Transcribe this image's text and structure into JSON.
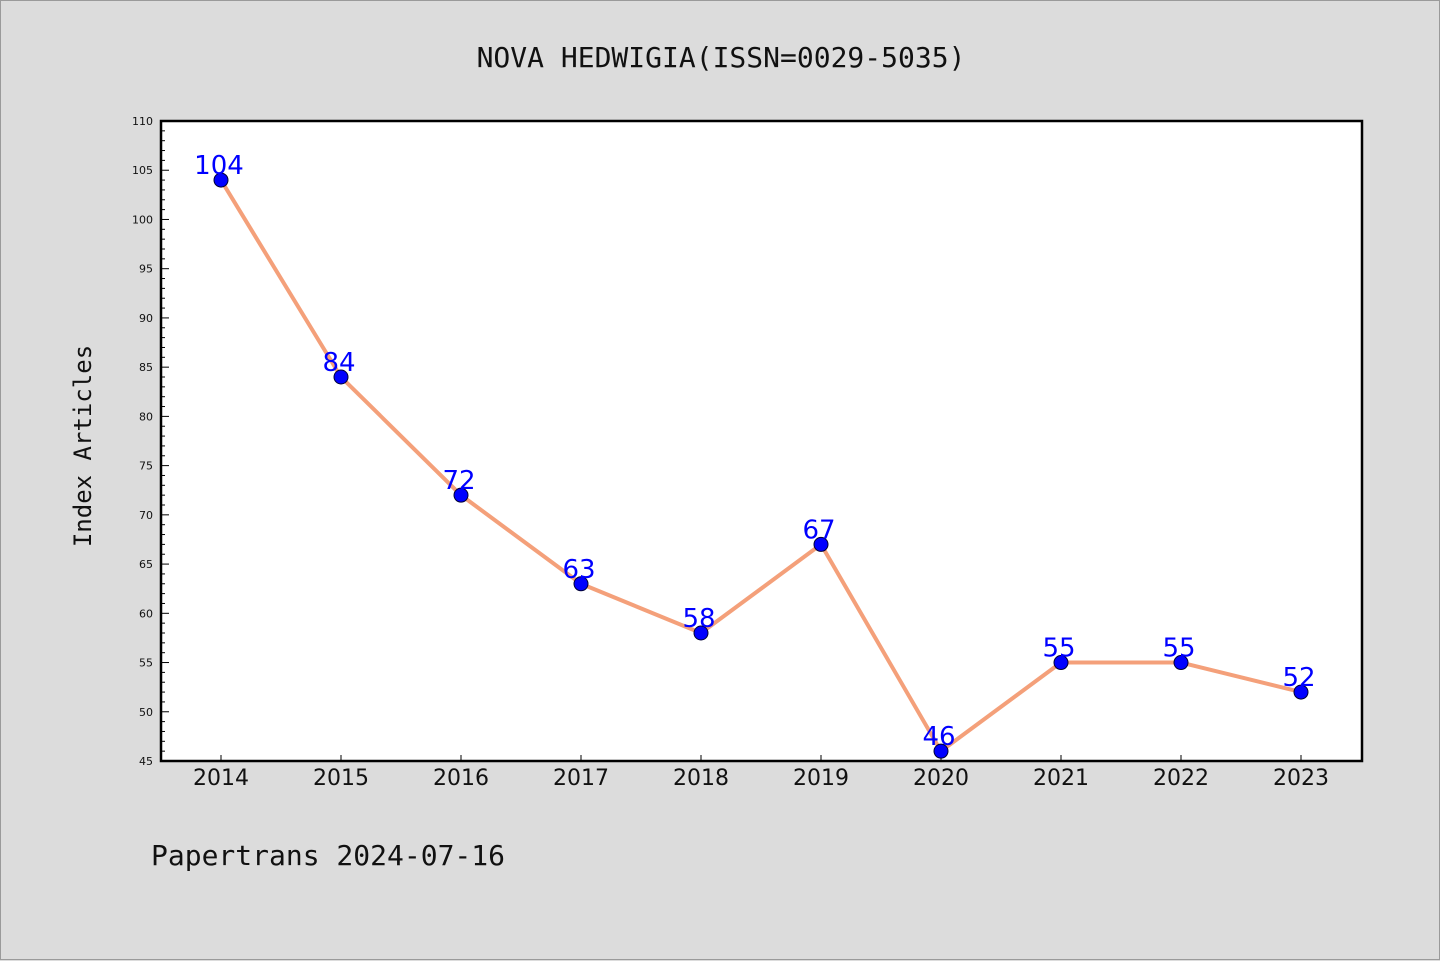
{
  "chart_data": {
    "type": "line",
    "title": "NOVA HEDWIGIA(ISSN=0029-5035)",
    "xlabel": "",
    "ylabel": "Index Articles",
    "categories": [
      "2014",
      "2015",
      "2016",
      "2017",
      "2018",
      "2019",
      "2020",
      "2021",
      "2022",
      "2023"
    ],
    "series": [
      {
        "values": [
          104,
          84,
          72,
          63,
          58,
          67,
          46,
          55,
          55,
          52
        ]
      }
    ],
    "ylim": [
      45,
      110
    ],
    "yticks": [
      45,
      50,
      55,
      60,
      65,
      70,
      75,
      80,
      85,
      90,
      95,
      100,
      105,
      110
    ],
    "grid": false,
    "line_color": "#f4a07a",
    "marker_color": "#0000ff",
    "label_color": "#0000ff"
  },
  "footer": "Papertrans 2024-07-16"
}
